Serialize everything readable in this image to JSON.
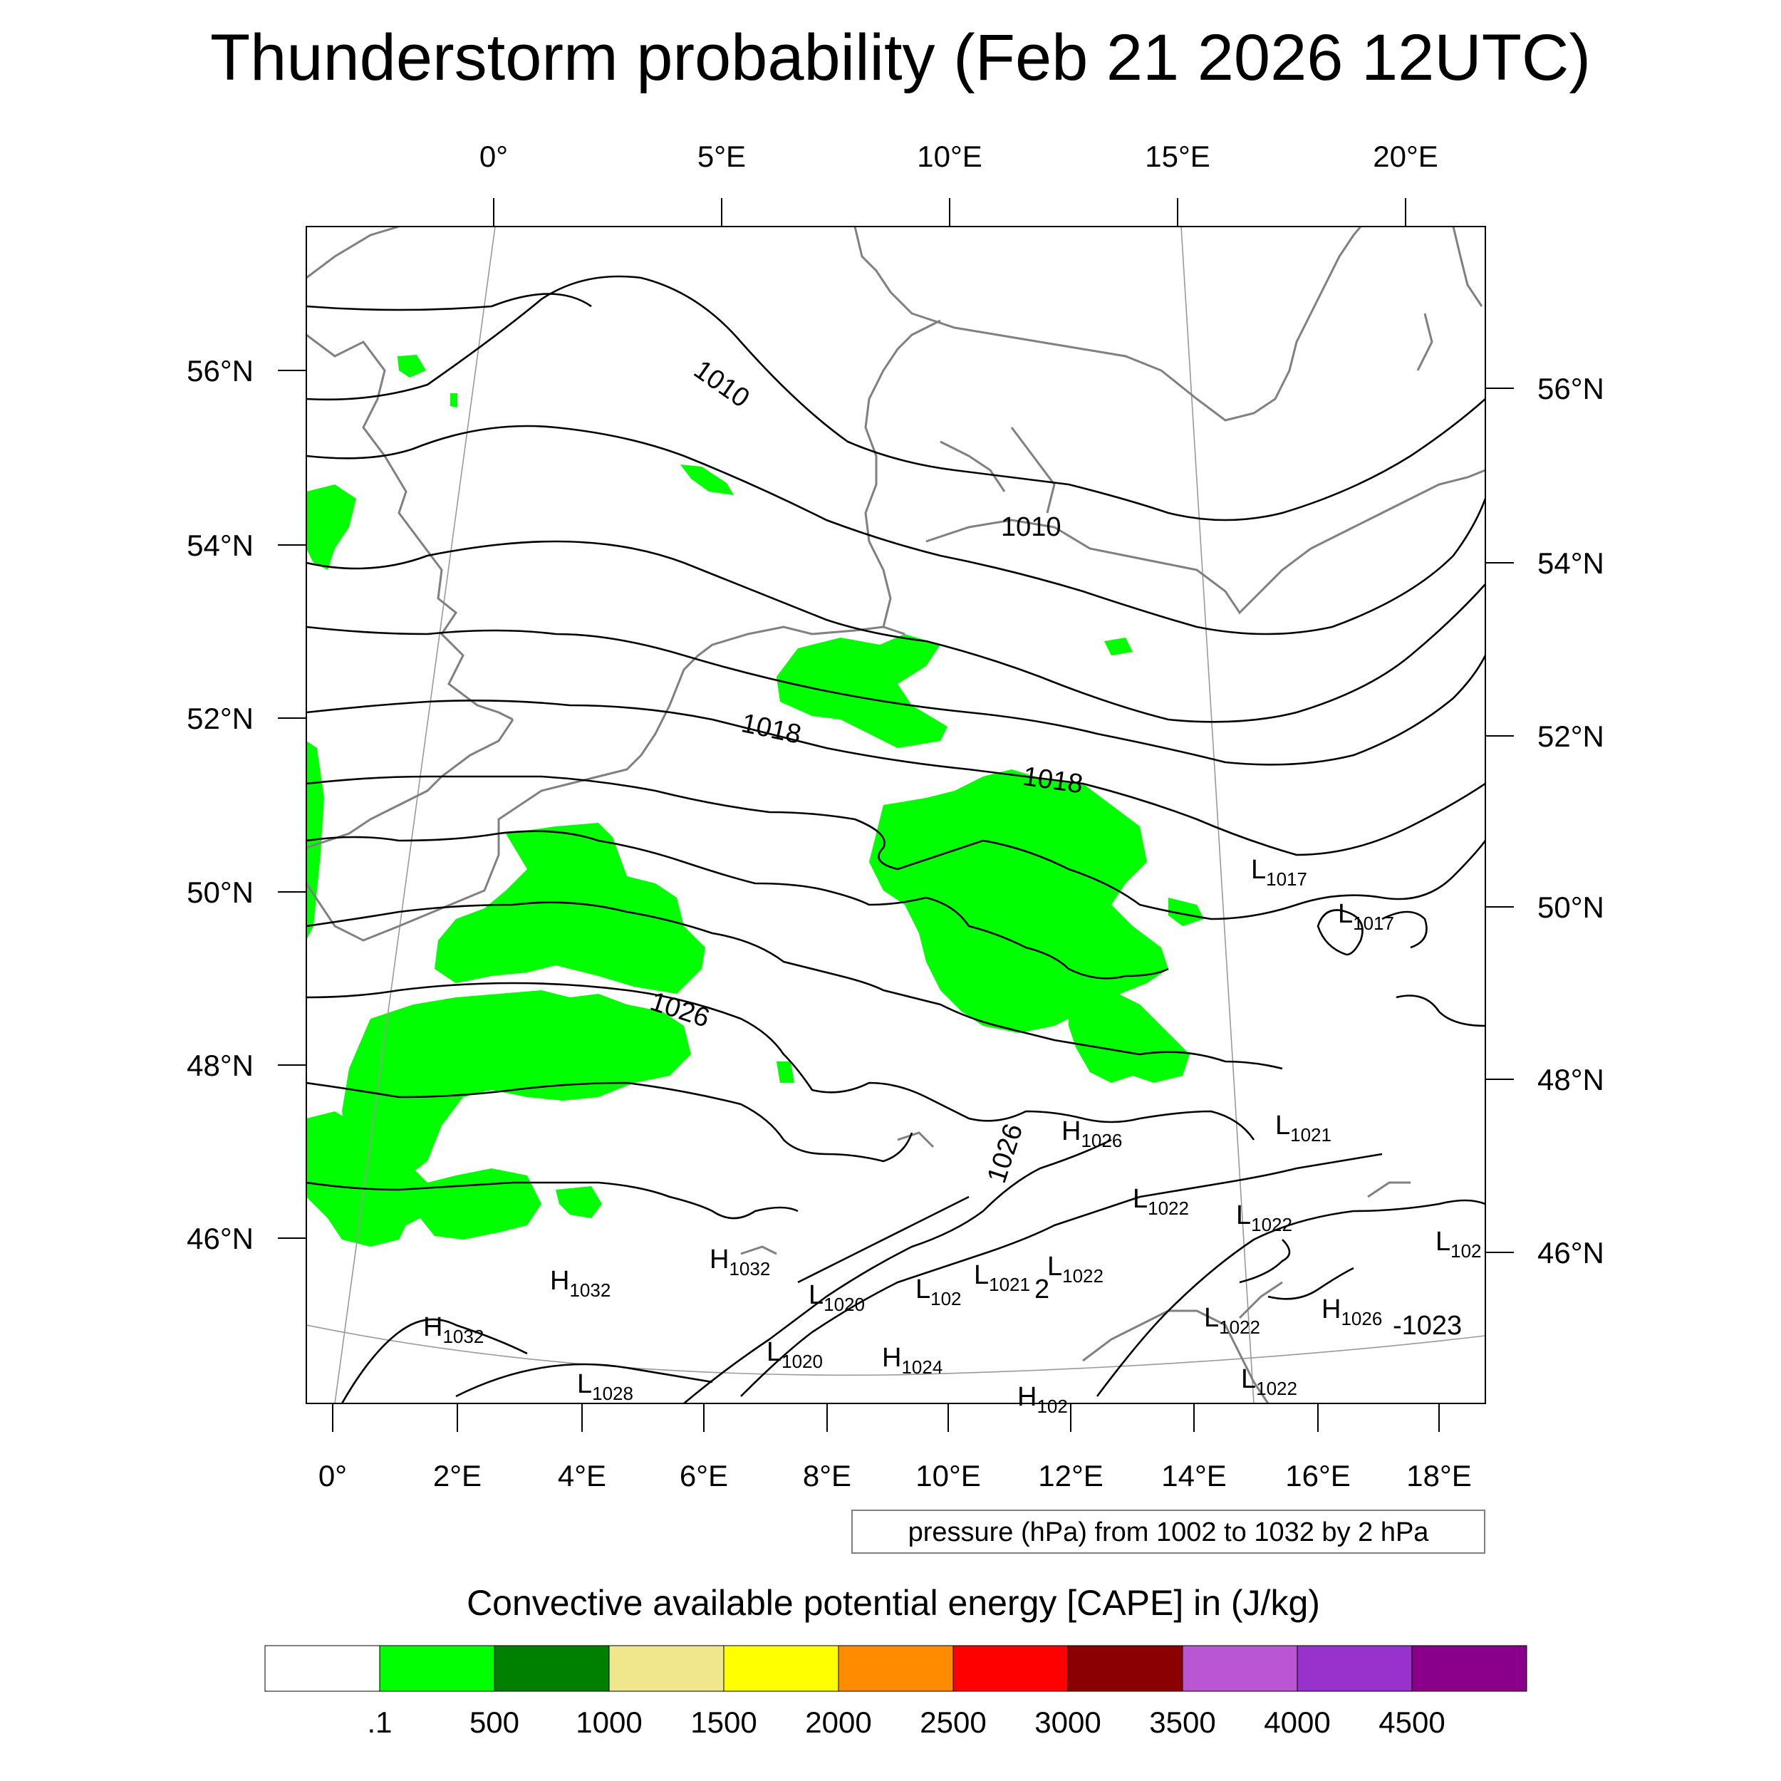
{
  "title": "Thunderstorm probability (Feb 21 2026 12UTC)",
  "top_axis_labels": [
    "0°",
    "5°E",
    "10°E",
    "15°E",
    "20°E"
  ],
  "bottom_axis_labels": [
    "0°",
    "2°E",
    "4°E",
    "6°E",
    "8°E",
    "10°E",
    "12°E",
    "14°E",
    "16°E",
    "18°E"
  ],
  "left_axis_labels": [
    "56°N",
    "54°N",
    "52°N",
    "50°N",
    "48°N",
    "46°N"
  ],
  "right_axis_labels": [
    "56°N",
    "54°N",
    "52°N",
    "50°N",
    "48°N",
    "46°N"
  ],
  "contour_labels": [
    "1010",
    "1010",
    "1018",
    "1018",
    "1026",
    "1026"
  ],
  "pressure_centers": [
    {
      "type": "L",
      "value": "1017"
    },
    {
      "type": "L",
      "value": "1017"
    },
    {
      "type": "L",
      "value": "1021"
    },
    {
      "type": "H",
      "value": "1026"
    },
    {
      "type": "L",
      "value": "1022"
    },
    {
      "type": "L",
      "value": "1022"
    },
    {
      "type": "L",
      "value": "102"
    },
    {
      "type": "H",
      "value": "1032"
    },
    {
      "type": "H",
      "value": "1032"
    },
    {
      "type": "L",
      "value": "1020"
    },
    {
      "type": "L",
      "value": "102"
    },
    {
      "type": "L",
      "value": "1021"
    },
    {
      "type": "L",
      "value": "1022"
    },
    {
      "type": "H",
      "value": "1032"
    },
    {
      "type": "L",
      "value": "1020"
    },
    {
      "type": "H",
      "value": "1024"
    },
    {
      "type": "L",
      "value": "1028"
    },
    {
      "type": "L",
      "value": "1022"
    },
    {
      "type": "H",
      "value": "1026"
    },
    {
      "type": "L",
      "value": "1022"
    },
    {
      "type": "H",
      "value": "102"
    }
  ],
  "extra_labels": [
    "-1023",
    "2"
  ],
  "pressure_note": "pressure (hPa) from 1002 to 1032 by 2 hPa",
  "legend": {
    "title": "Convective available potential energy [CAPE] in (J/kg)",
    "colors": [
      "#ffffff",
      "#00ff00",
      "#008000",
      "#f0e68c",
      "#ffff00",
      "#ff8c00",
      "#ff0000",
      "#8b0000",
      "#ba55d3",
      "#9932cc",
      "#8b008b"
    ],
    "labels": [
      ".1",
      "500",
      "1000",
      "1500",
      "2000",
      "2500",
      "3000",
      "3500",
      "4000",
      "4500"
    ]
  },
  "cape_fill_color": "#00ff00"
}
